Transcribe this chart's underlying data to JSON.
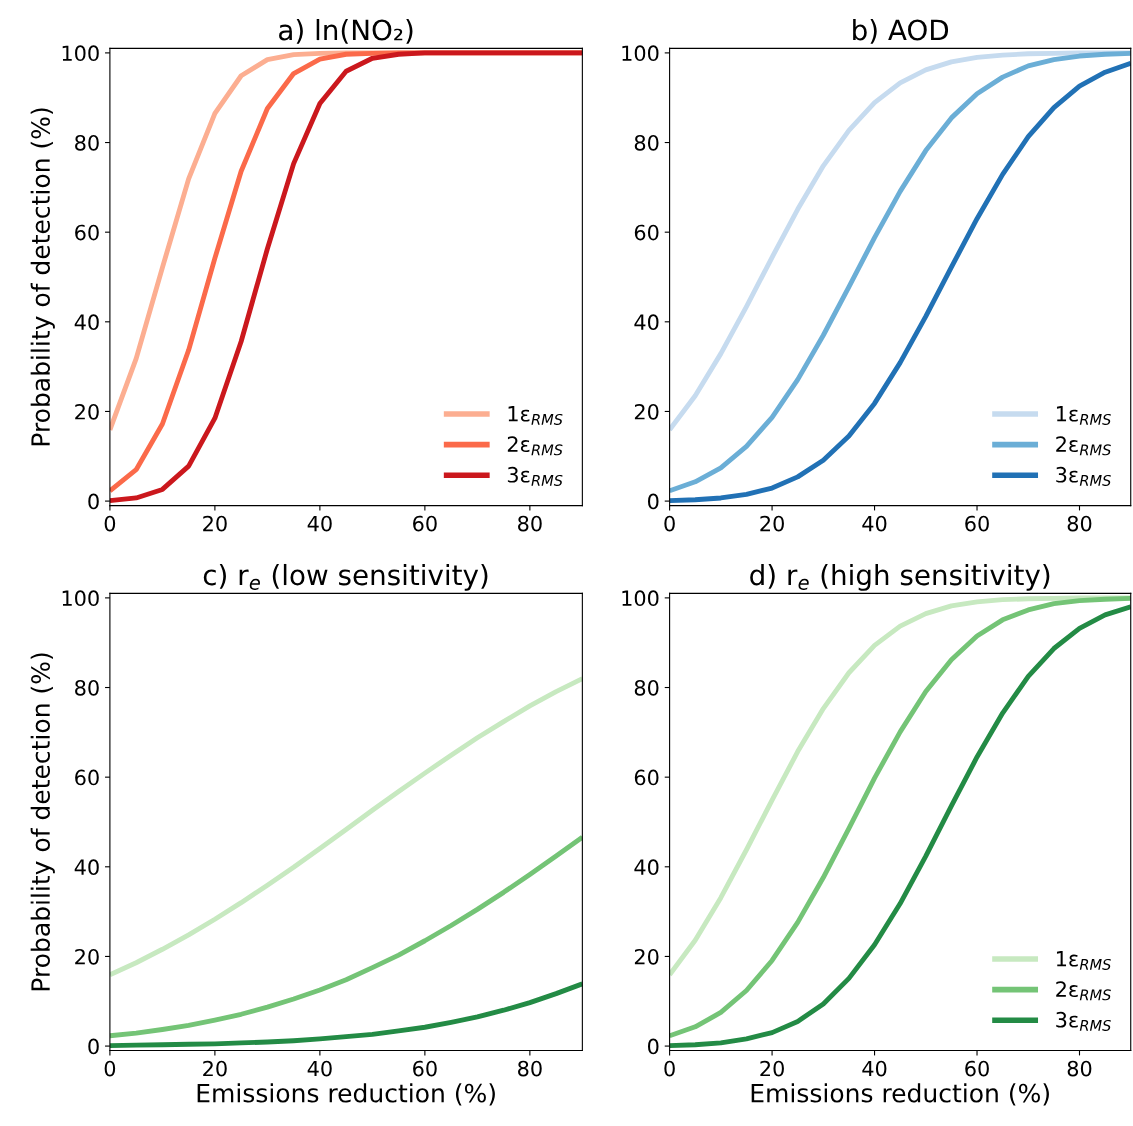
{
  "chart_data": [
    {
      "type": "line",
      "title": "a) ln(NO₂)",
      "ylabel": "Probability of detection (%)",
      "x": [
        0,
        5,
        10,
        15,
        20,
        25,
        30,
        35,
        40,
        45,
        50,
        55,
        60,
        90
      ],
      "xlim": [
        0,
        90
      ],
      "ylim": [
        -1,
        101
      ],
      "xticks": [
        0,
        20,
        40,
        60,
        80
      ],
      "yticks": [
        0,
        20,
        40,
        60,
        80,
        100
      ],
      "legend": "bottom right",
      "series": [
        {
          "name": "1ε$_{RMS}$",
          "color": "#fcae91",
          "values": [
            15.9,
            31.8,
            52.1,
            71.9,
            86.5,
            94.9,
            98.5,
            99.6,
            99.9,
            100,
            100,
            100,
            100,
            100
          ]
        },
        {
          "name": "2ε$_{RMS}$",
          "color": "#fb6a4a",
          "values": [
            2.3,
            7.0,
            17.2,
            33.7,
            54.2,
            73.6,
            87.6,
            95.4,
            98.6,
            99.7,
            99.9,
            100,
            100,
            100
          ]
        },
        {
          "name": "3ε$_{RMS}$",
          "color": "#cb181d",
          "values": [
            0.1,
            0.7,
            2.6,
            7.8,
            18.5,
            35.6,
            56.3,
            75.3,
            88.7,
            95.9,
            98.8,
            99.7,
            100,
            100
          ]
        }
      ]
    },
    {
      "type": "line",
      "title": "b) AOD",
      "x": [
        0,
        5,
        10,
        15,
        20,
        25,
        30,
        35,
        40,
        45,
        50,
        55,
        60,
        65,
        70,
        75,
        80,
        85,
        90
      ],
      "xlim": [
        0,
        90
      ],
      "ylim": [
        -1,
        101
      ],
      "xticks": [
        0,
        20,
        40,
        60,
        80
      ],
      "yticks": [
        0,
        20,
        40,
        60,
        80,
        100
      ],
      "legend": "bottom right",
      "series": [
        {
          "name": "1ε$_{RMS}$",
          "color": "#c6dbef",
          "values": [
            15.9,
            23.5,
            32.9,
            43.4,
            54.4,
            65.1,
            74.8,
            82.7,
            88.9,
            93.3,
            96.2,
            98.0,
            99.0,
            99.5,
            99.8,
            99.9,
            100,
            100,
            100
          ]
        },
        {
          "name": "2ε$_{RMS}$",
          "color": "#6baed6",
          "values": [
            2.3,
            4.3,
            7.4,
            12.2,
            18.7,
            27.1,
            37.0,
            47.8,
            58.8,
            69.1,
            78.2,
            85.5,
            90.9,
            94.6,
            97.1,
            98.5,
            99.3,
            99.7,
            99.9
          ]
        },
        {
          "name": "3ε$_{RMS}$",
          "color": "#2171b5",
          "values": [
            0.1,
            0.3,
            0.7,
            1.5,
            2.9,
            5.4,
            9.1,
            14.5,
            21.8,
            30.9,
            41.2,
            52.2,
            63.0,
            72.9,
            81.3,
            87.8,
            92.6,
            95.7,
            97.7
          ]
        }
      ]
    },
    {
      "type": "line",
      "title": "c) r$_{e}$ (low sensitivity)",
      "xlabel": "Emissions reduction (%)",
      "ylabel": "Probability of detection (%)",
      "x": [
        0,
        5,
        10,
        15,
        20,
        25,
        30,
        35,
        40,
        45,
        50,
        55,
        60,
        65,
        70,
        75,
        80,
        85,
        90
      ],
      "xlim": [
        0,
        90
      ],
      "ylim": [
        -1,
        101
      ],
      "xticks": [
        0,
        20,
        40,
        60,
        80
      ],
      "yticks": [
        0,
        20,
        40,
        60,
        80,
        100
      ],
      "series": [
        {
          "color": "#c7e9c0",
          "values": [
            15.9,
            18.6,
            21.6,
            24.8,
            28.3,
            32.0,
            35.9,
            39.9,
            44.1,
            48.3,
            52.6,
            56.8,
            60.9,
            64.9,
            68.8,
            72.4,
            75.9,
            79.1,
            82.0
          ]
        },
        {
          "color": "#74c476",
          "values": [
            2.3,
            2.9,
            3.7,
            4.6,
            5.8,
            7.1,
            8.7,
            10.5,
            12.5,
            14.8,
            17.5,
            20.3,
            23.5,
            26.9,
            30.5,
            34.3,
            38.3,
            42.4,
            46.6
          ]
        },
        {
          "color": "#238b45",
          "values": [
            0.1,
            0.2,
            0.3,
            0.4,
            0.5,
            0.7,
            0.9,
            1.2,
            1.6,
            2.1,
            2.6,
            3.4,
            4.2,
            5.3,
            6.5,
            8.0,
            9.7,
            11.7,
            13.9
          ]
        }
      ]
    },
    {
      "type": "line",
      "title": "d) r$_{e}$ (high sensitivity)",
      "xlabel": "Emissions reduction (%)",
      "x": [
        0,
        5,
        10,
        15,
        20,
        25,
        30,
        35,
        40,
        45,
        50,
        55,
        60,
        65,
        70,
        75,
        80,
        85,
        90
      ],
      "xlim": [
        0,
        90
      ],
      "ylim": [
        -1,
        101
      ],
      "xticks": [
        0,
        20,
        40,
        60,
        80
      ],
      "yticks": [
        0,
        20,
        40,
        60,
        80,
        100
      ],
      "legend": "bottom right",
      "series": [
        {
          "name": "1ε$_{RMS}$",
          "color": "#c7e9c0",
          "values": [
            15.9,
            23.6,
            33.1,
            43.8,
            54.9,
            65.7,
            75.3,
            83.3,
            89.4,
            93.7,
            96.5,
            98.2,
            99.1,
            99.6,
            99.8,
            99.9,
            100,
            100,
            100
          ]
        },
        {
          "name": "2ε$_{RMS}$",
          "color": "#74c476",
          "values": [
            2.3,
            4.3,
            7.5,
            12.4,
            19.1,
            27.6,
            37.6,
            48.6,
            59.8,
            70.1,
            79.1,
            86.2,
            91.5,
            95.1,
            97.3,
            98.7,
            99.4,
            99.7,
            99.9
          ]
        },
        {
          "name": "3ε$_{RMS}$",
          "color": "#238b45",
          "values": [
            0.1,
            0.3,
            0.7,
            1.6,
            3.0,
            5.5,
            9.4,
            15.1,
            22.6,
            31.8,
            42.4,
            53.6,
            64.5,
            74.3,
            82.5,
            88.7,
            93.2,
            96.2,
            98.0
          ]
        }
      ]
    }
  ]
}
